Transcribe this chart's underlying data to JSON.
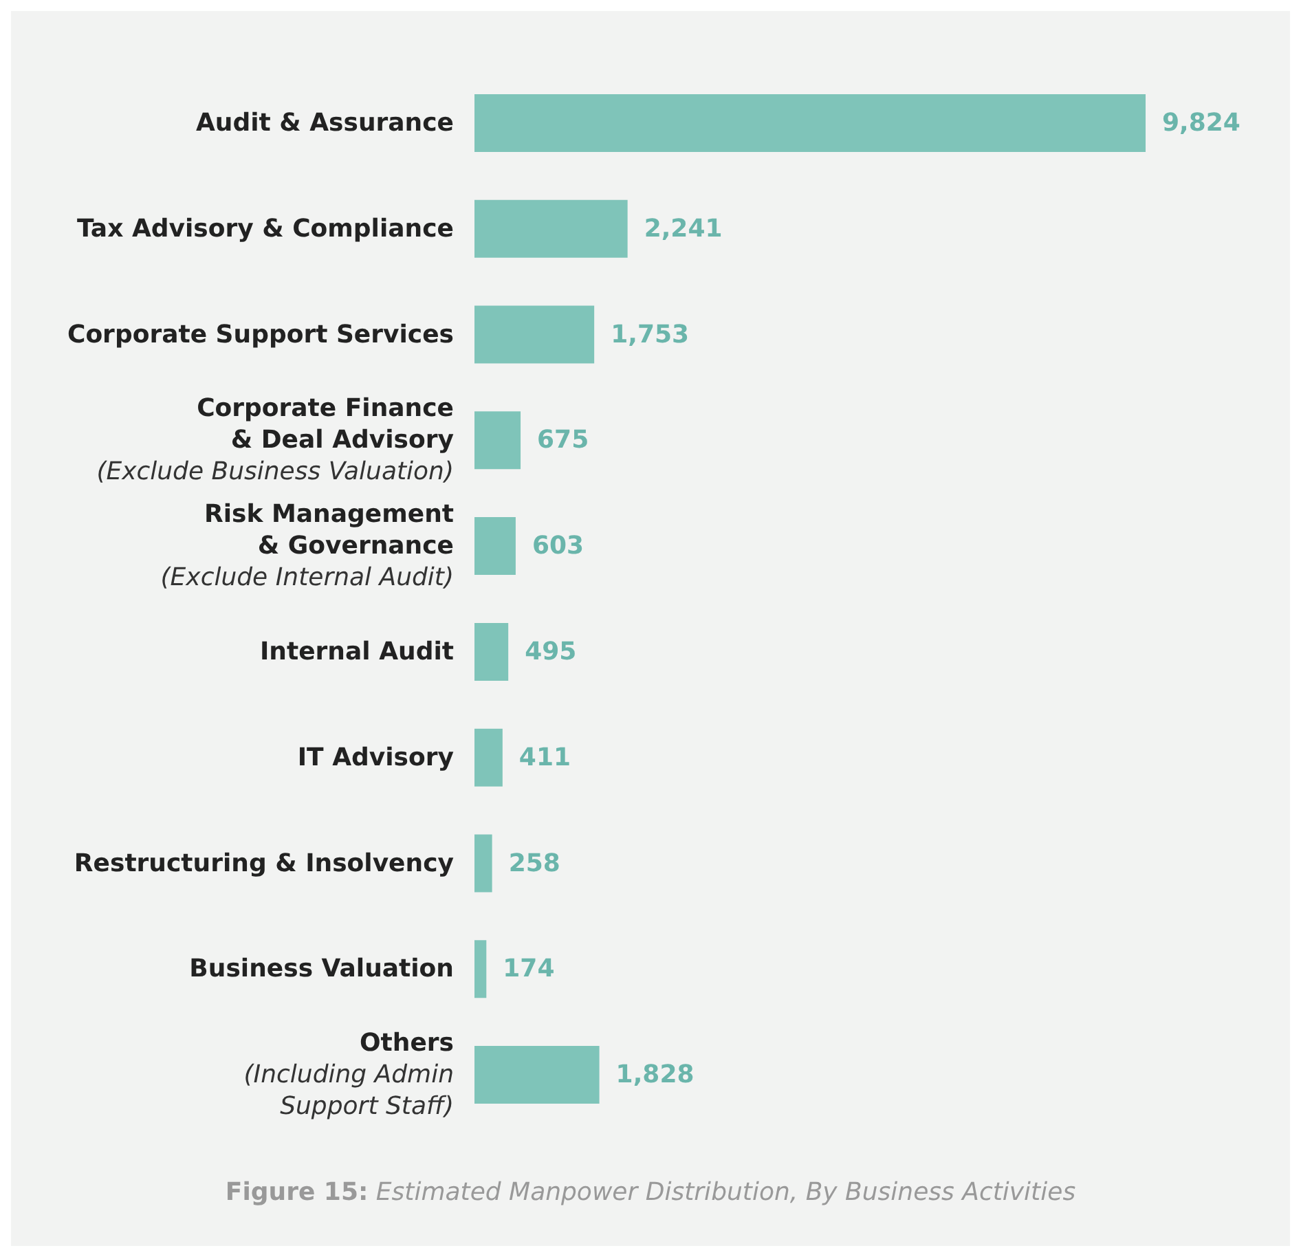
{
  "chart_data": {
    "type": "bar",
    "orientation": "horizontal",
    "categories": [
      "Audit & Assurance",
      "Tax Advisory & Compliance",
      "Corporate Support Services",
      "Corporate Finance\n& Deal Advisory\n(Exclude Business Valuation)",
      "Risk Management\n& Governance\n(Exclude Internal Audit)",
      "Internal Audit",
      "IT Advisory",
      "Restructuring & Insolvency",
      "Business Valuation",
      "Others\n(Including Admin\nSupport Staff)"
    ],
    "values": [
      9824,
      2241,
      1753,
      675,
      603,
      495,
      411,
      258,
      174,
      1828
    ],
    "value_labels": [
      "9,824",
      "2,241",
      "1,753",
      "675",
      "603",
      "495",
      "411",
      "258",
      "174",
      "1,828"
    ],
    "color": "#7fc4b9",
    "grid": false,
    "annotations": [
      "Figure 15: Estimated Manpower Distribution, By Business Activities"
    ]
  }
}
